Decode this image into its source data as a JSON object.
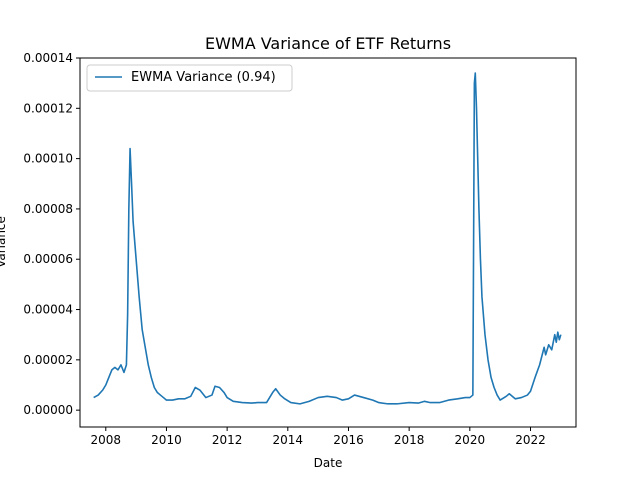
{
  "chart_data": {
    "type": "line",
    "title": "EWMA Variance of ETF Returns",
    "xlabel": "Date",
    "ylabel": "Variance",
    "xlim": [
      2007.15,
      2023.5
    ],
    "ylim": [
      -6.7e-06,
      0.00014
    ],
    "x_ticks": [
      2008,
      2010,
      2012,
      2014,
      2016,
      2018,
      2020,
      2022
    ],
    "x_tick_labels": [
      "2008",
      "2010",
      "2012",
      "2014",
      "2016",
      "2018",
      "2020",
      "2022"
    ],
    "y_ticks": [
      0,
      2e-05,
      4e-05,
      6e-05,
      8e-05,
      0.0001,
      0.00012,
      0.00014
    ],
    "y_tick_labels": [
      "0.00000",
      "0.00002",
      "0.00004",
      "0.00006",
      "0.00008",
      "0.00010",
      "0.00012",
      "0.00014"
    ],
    "grid": false,
    "legend_position": "upper-left",
    "series": [
      {
        "name": "EWMA Variance (0.94)",
        "color": "#1f77b4",
        "x": [
          2007.6,
          2007.75,
          2007.9,
          2008.0,
          2008.1,
          2008.2,
          2008.3,
          2008.4,
          2008.5,
          2008.6,
          2008.68,
          2008.72,
          2008.76,
          2008.8,
          2008.85,
          2008.9,
          2009.0,
          2009.1,
          2009.2,
          2009.3,
          2009.4,
          2009.5,
          2009.6,
          2009.7,
          2009.8,
          2009.9,
          2010.0,
          2010.2,
          2010.4,
          2010.6,
          2010.8,
          2010.95,
          2011.1,
          2011.3,
          2011.5,
          2011.6,
          2011.75,
          2011.9,
          2012.0,
          2012.2,
          2012.5,
          2012.8,
          2013.0,
          2013.3,
          2013.5,
          2013.6,
          2013.75,
          2013.9,
          2014.1,
          2014.4,
          2014.7,
          2015.0,
          2015.3,
          2015.6,
          2015.8,
          2016.0,
          2016.2,
          2016.5,
          2016.8,
          2017.0,
          2017.3,
          2017.6,
          2018.0,
          2018.3,
          2018.5,
          2018.7,
          2019.0,
          2019.3,
          2019.6,
          2019.85,
          2020.0,
          2020.1,
          2020.15,
          2020.18,
          2020.22,
          2020.26,
          2020.3,
          2020.35,
          2020.4,
          2020.5,
          2020.6,
          2020.7,
          2020.8,
          2020.9,
          2021.0,
          2021.2,
          2021.3,
          2021.5,
          2021.7,
          2021.9,
          2022.0,
          2022.15,
          2022.3,
          2022.45,
          2022.5,
          2022.6,
          2022.7,
          2022.8,
          2022.85,
          2022.9,
          2022.95,
          2023.0
        ],
        "values": [
          5e-06,
          6e-06,
          8e-06,
          1e-05,
          1.3e-05,
          1.6e-05,
          1.7e-05,
          1.6e-05,
          1.8e-05,
          1.5e-05,
          1.8e-05,
          3.8e-05,
          8e-05,
          0.000104,
          9e-05,
          7.5e-05,
          6e-05,
          4.5e-05,
          3.2e-05,
          2.5e-05,
          1.8e-05,
          1.3e-05,
          9e-06,
          7e-06,
          6e-06,
          5e-06,
          4e-06,
          4e-06,
          4.5e-06,
          4.5e-06,
          5.5e-06,
          9e-06,
          8e-06,
          5e-06,
          6e-06,
          9.5e-06,
          9e-06,
          7e-06,
          5e-06,
          3.5e-06,
          3e-06,
          2.8e-06,
          3e-06,
          3e-06,
          7e-06,
          8.5e-06,
          6e-06,
          4.5e-06,
          3e-06,
          2.5e-06,
          3.5e-06,
          5e-06,
          5.5e-06,
          5e-06,
          4e-06,
          4.5e-06,
          6e-06,
          5e-06,
          4e-06,
          3e-06,
          2.5e-06,
          2.5e-06,
          3e-06,
          2.8e-06,
          3.5e-06,
          3e-06,
          3e-06,
          4e-06,
          4.5e-06,
          5e-06,
          5e-06,
          6e-06,
          0.00013,
          0.000134,
          0.00012,
          0.0001,
          8e-05,
          6e-05,
          4.5e-05,
          3e-05,
          2e-05,
          1.3e-05,
          9e-06,
          6e-06,
          4e-06,
          5.5e-06,
          6.5e-06,
          4.5e-06,
          5e-06,
          6e-06,
          7.5e-06,
          1.3e-05,
          1.8e-05,
          2.5e-05,
          2.2e-05,
          2.6e-05,
          2.4e-05,
          3e-05,
          2.7e-05,
          3.1e-05,
          2.8e-05,
          3e-05
        ]
      }
    ]
  }
}
